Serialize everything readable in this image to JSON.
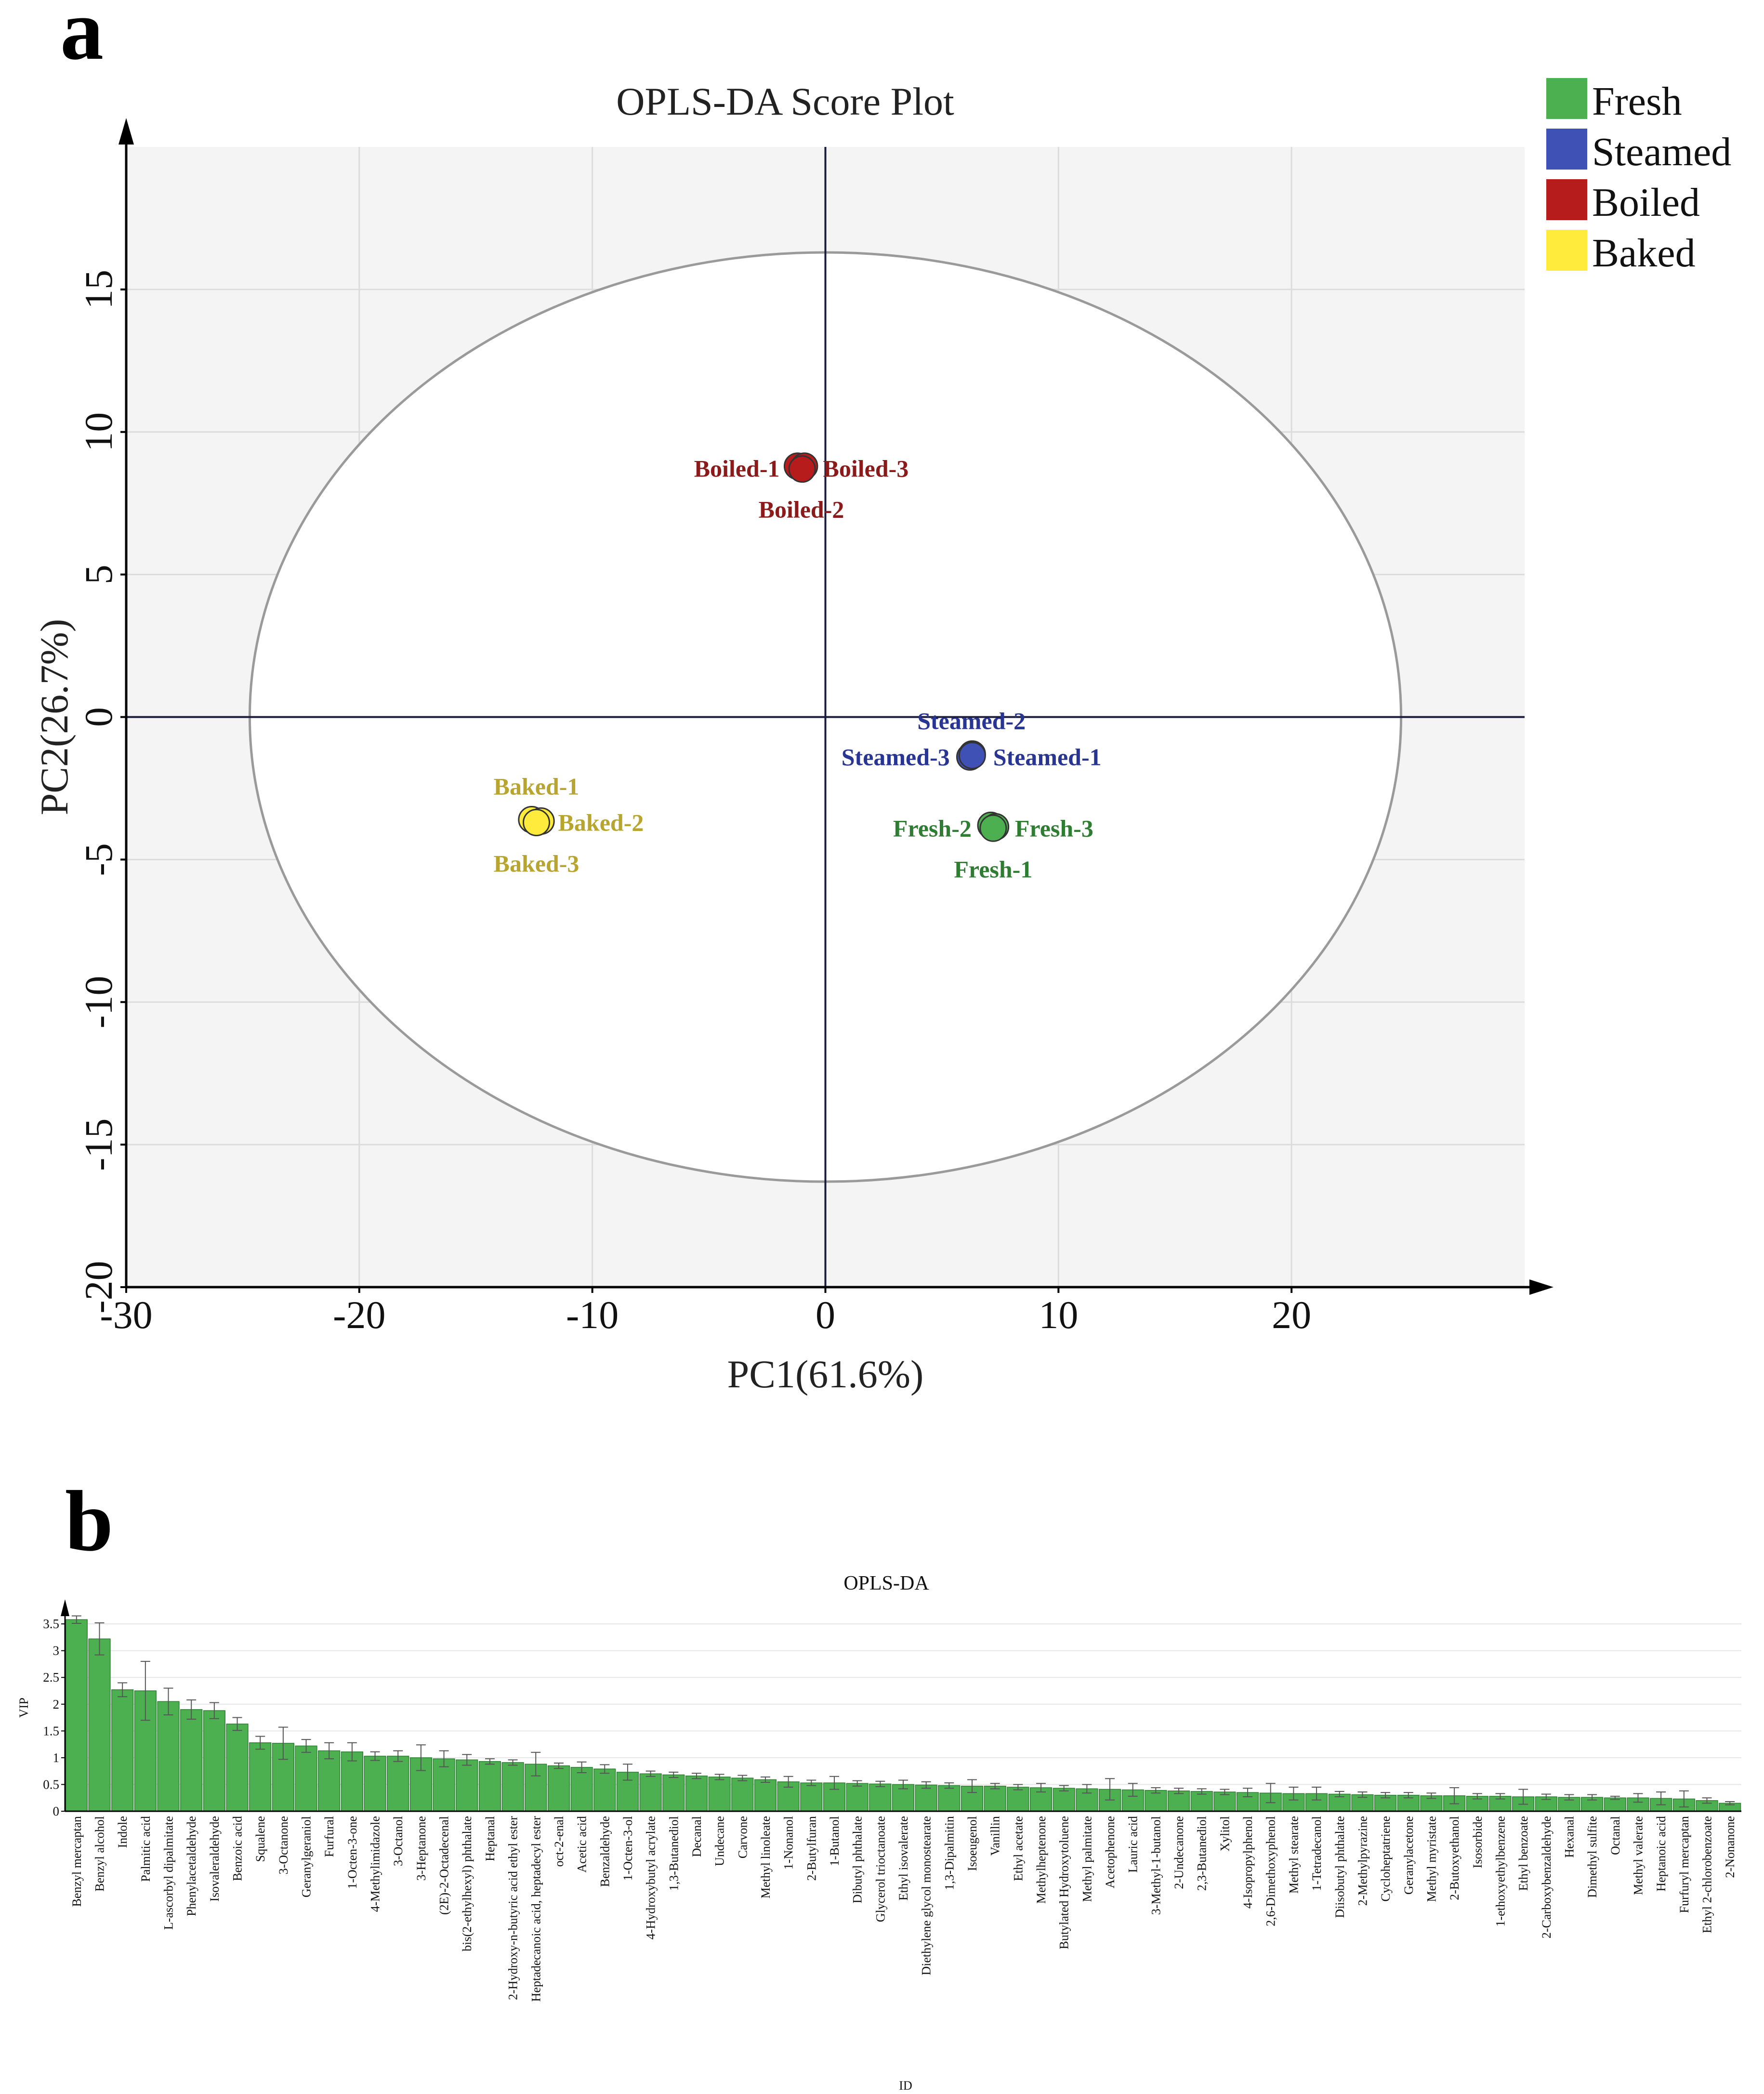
{
  "panel_a_letter": "a",
  "panel_b_letter": "b",
  "legend": [
    {
      "label": "Fresh",
      "color": "#4caf50"
    },
    {
      "label": "Steamed",
      "color": "#3f51b5"
    },
    {
      "label": "Boiled",
      "color": "#b71c1c"
    },
    {
      "label": "Baked",
      "color": "#ffeb3b"
    }
  ],
  "chart_data": [
    {
      "type": "scatter",
      "title": "OPLS-DA Score Plot",
      "xlabel": "PC1(61.6%)",
      "ylabel": "PC2(26.7%)",
      "xlim": [
        -30,
        30
      ],
      "ylim": [
        -20,
        20
      ],
      "xticks": [
        -30,
        -20,
        -10,
        0,
        10,
        20
      ],
      "yticks": [
        -20,
        -15,
        -10,
        -5,
        0,
        5,
        10,
        15
      ],
      "ellipse": {
        "rx": 24.7,
        "ry": 16.3
      },
      "groups": [
        {
          "name": "Boiled",
          "color": "#b71c1c",
          "label_color": "#8b1a1a",
          "points": [
            {
              "label": "Boiled-1",
              "x": -1.2,
              "y": 8.8,
              "pos": "left"
            },
            {
              "label": "Boiled-3",
              "x": -0.9,
              "y": 8.8,
              "pos": "right"
            },
            {
              "label": "Boiled-2",
              "x": -1.0,
              "y": 8.7,
              "pos": "below"
            }
          ]
        },
        {
          "name": "Steamed",
          "color": "#3f51b5",
          "label_color": "#283593",
          "points": [
            {
              "label": "Steamed-2",
              "x": 6.3,
              "y": -1.3,
              "pos": "above"
            },
            {
              "label": "Steamed-3",
              "x": 6.2,
              "y": -1.4,
              "pos": "left"
            },
            {
              "label": "Steamed-1",
              "x": 6.3,
              "y": -1.35,
              "pos": "right"
            }
          ]
        },
        {
          "name": "Fresh",
          "color": "#4caf50",
          "label_color": "#2e7d32",
          "points": [
            {
              "label": "Fresh-2",
              "x": 7.1,
              "y": -3.8,
              "pos": "left"
            },
            {
              "label": "Fresh-3",
              "x": 7.3,
              "y": -3.85,
              "pos": "right"
            },
            {
              "label": "Fresh-1",
              "x": 7.2,
              "y": -3.9,
              "pos": "below"
            }
          ]
        },
        {
          "name": "Baked",
          "color": "#ffeb3b",
          "label_color": "#b8a530",
          "points": [
            {
              "label": "Baked-1",
              "x": -12.6,
              "y": -3.6,
              "pos": "above"
            },
            {
              "label": "Baked-2",
              "x": -12.2,
              "y": -3.65,
              "pos": "right"
            },
            {
              "label": "Baked-3",
              "x": -12.4,
              "y": -3.7,
              "pos": "below"
            }
          ]
        }
      ]
    },
    {
      "type": "bar",
      "title": "OPLS-DA",
      "xlabel": "ID",
      "ylabel": "VIP",
      "ylim": [
        0,
        3.6
      ],
      "yticks": [
        0,
        0.5,
        1,
        1.5,
        2,
        2.5,
        3,
        3.5
      ],
      "categories": [
        "Benzyl mercaptan",
        "Benzyl alcohol",
        "Indole",
        "Palmitic acid",
        "L-ascorbyl dipalmitate",
        "Phenylacetaldehyde",
        "Isovaleraldehyde",
        "Benzoic acid",
        "Squalene",
        "3-Octanone",
        "Geranylgeraniol",
        "Furfural",
        "1-Octen-3-one",
        "4-Methylimidazole",
        "3-Octanol",
        "3-Heptanone",
        "(2E)-2-Octadecenal",
        "bis(2-ethylhexyl) phthalate",
        "Heptanal",
        "2-Hydroxy-n-butyric acid ethyl ester",
        "Heptadecanoic acid, heptadecyl ester",
        "oct-2-enal",
        "Acetic acid",
        "Benzaldehyde",
        "1-Octen-3-ol",
        "4-Hydroxybutyl acrylate",
        "1,3-Butanediol",
        "Decanal",
        "Undecane",
        "Carvone",
        "Methyl linoleate",
        "1-Nonanol",
        "2-Butylfuran",
        "1-Butanol",
        "Dibutyl phthalate",
        "Glycerol trioctanoate",
        "Ethyl isovalerate",
        "Diethylene glycol monostearate",
        "1,3-Dipalmitin",
        "Isoeugenol",
        "Vanillin",
        "Ethyl acetate",
        "Methylheptenone",
        "Butylated Hydroxytoluene",
        "Methyl palmitate",
        "Acetophenone",
        "Lauric acid",
        "3-Methyl-1-butanol",
        "2-Undecanone",
        "2,3-Butanediol",
        "Xylitol",
        "4-Isopropylphenol",
        "2,6-Dimethoxyphenol",
        "Methyl stearate",
        "1-Tetradecanol",
        "Diisobutyl phthalate",
        "2-Methylpyrazine",
        "Cycloheptatriene",
        "Geranylacetone",
        "Methyl myristate",
        "2-Butoxyethanol",
        "Isosorbide",
        "1-ethoxyethylbenzene",
        "Ethyl benzoate",
        "2-Carboxybenzaldehyde",
        "Hexanal",
        "Dimethyl sulfite",
        "Octanal",
        "Methyl valerate",
        "Heptanoic acid",
        "Furfuryl mercaptan",
        "Ethyl 2-chlorobenzoate",
        "2-Nonanone"
      ],
      "values": [
        3.58,
        3.22,
        2.27,
        2.25,
        2.05,
        1.9,
        1.88,
        1.63,
        1.28,
        1.27,
        1.22,
        1.13,
        1.11,
        1.03,
        1.03,
        1.0,
        0.98,
        0.96,
        0.93,
        0.91,
        0.88,
        0.85,
        0.82,
        0.79,
        0.73,
        0.7,
        0.68,
        0.66,
        0.64,
        0.62,
        0.59,
        0.55,
        0.53,
        0.53,
        0.52,
        0.51,
        0.5,
        0.49,
        0.48,
        0.47,
        0.47,
        0.45,
        0.44,
        0.43,
        0.42,
        0.41,
        0.4,
        0.39,
        0.38,
        0.37,
        0.36,
        0.35,
        0.34,
        0.33,
        0.33,
        0.32,
        0.31,
        0.3,
        0.3,
        0.29,
        0.29,
        0.28,
        0.28,
        0.27,
        0.27,
        0.26,
        0.26,
        0.25,
        0.25,
        0.24,
        0.23,
        0.2,
        0.15
      ],
      "errors": [
        0.07,
        0.3,
        0.13,
        0.55,
        0.25,
        0.18,
        0.15,
        0.12,
        0.12,
        0.3,
        0.12,
        0.15,
        0.17,
        0.08,
        0.1,
        0.24,
        0.15,
        0.1,
        0.05,
        0.05,
        0.22,
        0.05,
        0.1,
        0.08,
        0.15,
        0.05,
        0.05,
        0.05,
        0.05,
        0.05,
        0.05,
        0.1,
        0.05,
        0.12,
        0.05,
        0.05,
        0.08,
        0.06,
        0.05,
        0.12,
        0.05,
        0.05,
        0.08,
        0.05,
        0.08,
        0.2,
        0.12,
        0.05,
        0.05,
        0.05,
        0.05,
        0.08,
        0.18,
        0.12,
        0.12,
        0.05,
        0.05,
        0.05,
        0.05,
        0.05,
        0.15,
        0.05,
        0.05,
        0.14,
        0.05,
        0.05,
        0.05,
        0.03,
        0.08,
        0.12,
        0.15,
        0.05,
        0.03
      ],
      "color": "#4caf50"
    }
  ]
}
